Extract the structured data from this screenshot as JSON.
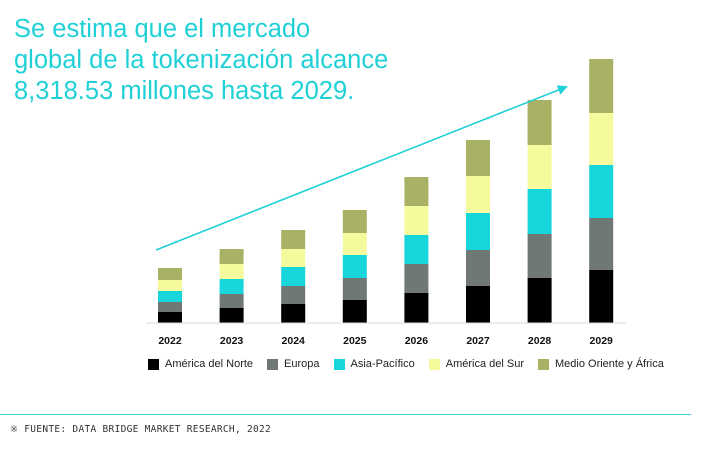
{
  "title_lines": [
    "Se estima que el mercado",
    "global de la tokenización alcance",
    "8,318.53 millones hasta 2029."
  ],
  "source": {
    "mark": "※",
    "text": "FUENTE: DATA BRIDGE MARKET RESEARCH, 2022"
  },
  "chart_data": {
    "type": "bar",
    "stacked": true,
    "categories": [
      "2022",
      "2023",
      "2024",
      "2025",
      "2026",
      "2027",
      "2028",
      "2029"
    ],
    "series": [
      {
        "name": "América del Norte",
        "color": "#000000",
        "values": [
          11,
          15,
          19,
          23,
          30,
          37,
          45,
          53
        ]
      },
      {
        "name": "Europa",
        "color": "#6f7777",
        "values": [
          10,
          14,
          18,
          22,
          29,
          36,
          44,
          52
        ]
      },
      {
        "name": "Asia-Pacífico",
        "color": "#16d6dc",
        "values": [
          11,
          15,
          19,
          23,
          29,
          37,
          45,
          53
        ]
      },
      {
        "name": "América del Sur",
        "color": "#f5fb9c",
        "values": [
          11,
          15,
          18,
          22,
          29,
          37,
          44,
          52
        ]
      },
      {
        "name": "Medio Oriente y África",
        "color": "#a9b165",
        "values": [
          12,
          15,
          19,
          23,
          29,
          36,
          45,
          54
        ]
      }
    ],
    "ylim": [
      0,
      264
    ],
    "legend_position": "bottom",
    "grid": false,
    "trend_arrow": true
  }
}
